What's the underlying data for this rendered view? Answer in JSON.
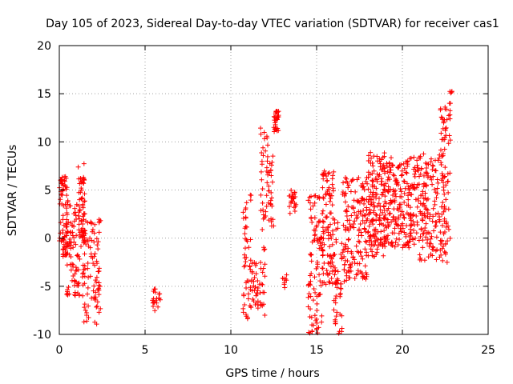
{
  "chart_data": {
    "type": "scatter",
    "title": "Day 105 of 2023, Sidereal Day-to-day VTEC variation (SDTVAR) for receiver cas1",
    "xlabel": "GPS time / hours",
    "ylabel": "SDTVAR / TECUs",
    "xlim": [
      0,
      25
    ],
    "ylim": [
      -10,
      20
    ],
    "xticks": [
      0,
      5,
      10,
      15,
      20,
      25
    ],
    "yticks": [
      -10,
      -5,
      0,
      5,
      10,
      15,
      20
    ],
    "xtick_labels": [
      "0",
      "5",
      "10",
      "15",
      "20",
      "25"
    ],
    "ytick_labels": [
      "-10",
      "-5",
      "0",
      "5",
      "10",
      "15",
      "20"
    ],
    "grid": true,
    "marker": "+",
    "color": "#ff0000",
    "clusters": [
      {
        "t0": 0.0,
        "t1": 0.5,
        "count": 80,
        "ymin": -2,
        "ymax": 6.5
      },
      {
        "t0": 0.4,
        "t1": 1.5,
        "count": 110,
        "ymin": -6.5,
        "ymax": 3.5
      },
      {
        "t0": 1.1,
        "t1": 1.5,
        "count": 40,
        "ymin": 0,
        "ymax": 7.8
      },
      {
        "t0": 1.4,
        "t1": 2.4,
        "count": 80,
        "ymin": -9,
        "ymax": 2
      },
      {
        "t0": 2.3,
        "t1": 2.5,
        "count": 4,
        "ymin": 1.5,
        "ymax": 2
      },
      {
        "t0": 5.4,
        "t1": 5.9,
        "count": 20,
        "ymin": -7.8,
        "ymax": -5.2
      },
      {
        "t0": 10.7,
        "t1": 11.2,
        "count": 50,
        "ymin": -8.5,
        "ymax": 4.5
      },
      {
        "t0": 11.2,
        "t1": 11.7,
        "count": 30,
        "ymin": -7.5,
        "ymax": -2.5
      },
      {
        "t0": 11.7,
        "t1": 12.0,
        "count": 40,
        "ymin": -8.5,
        "ymax": 11.5
      },
      {
        "t0": 12.0,
        "t1": 12.5,
        "count": 40,
        "ymin": 1,
        "ymax": 10.8
      },
      {
        "t0": 12.5,
        "t1": 12.8,
        "count": 30,
        "ymin": 11,
        "ymax": 13.2
      },
      {
        "t0": 13.0,
        "t1": 13.3,
        "count": 8,
        "ymin": -5.5,
        "ymax": -3.8
      },
      {
        "t0": 13.4,
        "t1": 13.8,
        "count": 25,
        "ymin": 2.5,
        "ymax": 5
      },
      {
        "t0": 14.5,
        "t1": 15.3,
        "count": 90,
        "ymin": -10,
        "ymax": 4.5
      },
      {
        "t0": 15.3,
        "t1": 16.0,
        "count": 100,
        "ymin": -5,
        "ymax": 7
      },
      {
        "t0": 16.0,
        "t1": 16.5,
        "count": 50,
        "ymin": -10,
        "ymax": 2
      },
      {
        "t0": 16.5,
        "t1": 18.0,
        "count": 160,
        "ymin": -4.5,
        "ymax": 6.5
      },
      {
        "t0": 18.0,
        "t1": 19.0,
        "count": 160,
        "ymin": -2,
        "ymax": 9
      },
      {
        "t0": 19.0,
        "t1": 21.0,
        "count": 220,
        "ymin": -1,
        "ymax": 8.5
      },
      {
        "t0": 21.0,
        "t1": 22.2,
        "count": 130,
        "ymin": -2.5,
        "ymax": 8.8
      },
      {
        "t0": 22.2,
        "t1": 22.8,
        "count": 90,
        "ymin": -2.8,
        "ymax": 13.8
      },
      {
        "t0": 22.7,
        "t1": 22.9,
        "count": 6,
        "ymin": 14,
        "ymax": 15.8
      }
    ]
  }
}
